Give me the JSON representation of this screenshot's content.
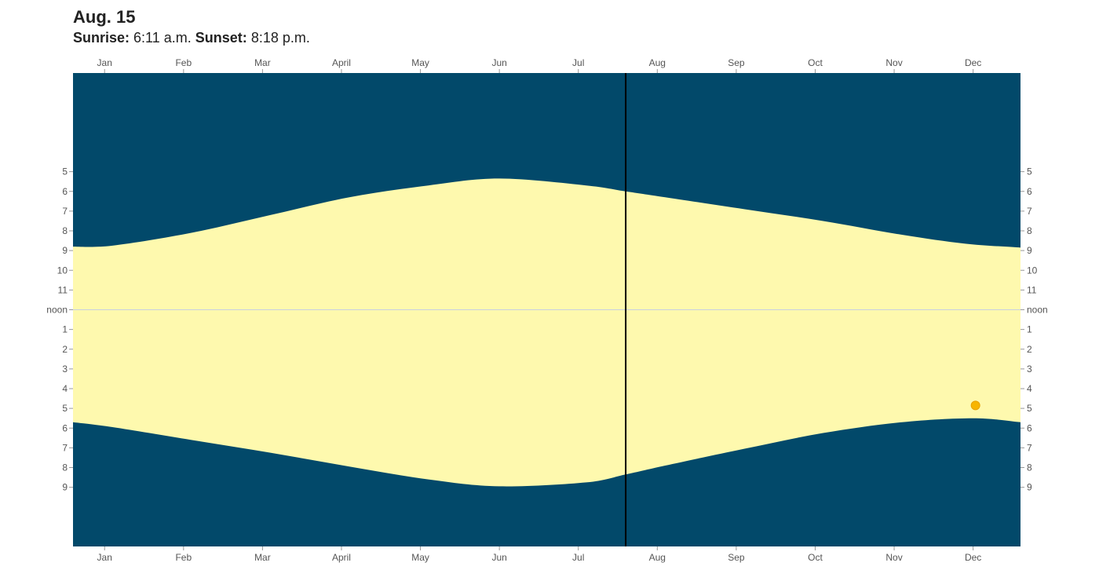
{
  "header": {
    "date": "Aug. 15",
    "sunrise_label": "Sunrise:",
    "sunrise_value": "6:11 a.m.",
    "sunset_label": "Sunset:",
    "sunset_value": "8:18 p.m."
  },
  "colors": {
    "night": "#02496a",
    "day": "#fef9ae",
    "noon_line": "#c8d0e0",
    "marker_line": "#000000",
    "sun_dot": "#f7b500"
  },
  "chart_data": {
    "type": "area",
    "months": [
      "Jan",
      "Feb",
      "Mar",
      "April",
      "May",
      "Jun",
      "Jul",
      "Aug",
      "Sep",
      "Oct",
      "Nov",
      "Dec"
    ],
    "hour_ticks": [
      "5",
      "6",
      "7",
      "8",
      "9",
      "10",
      "11",
      "noon",
      "1",
      "2",
      "3",
      "4",
      "5",
      "6",
      "7",
      "8",
      "9"
    ],
    "hour_tick_values": [
      5,
      6,
      7,
      8,
      9,
      10,
      11,
      12,
      13,
      14,
      15,
      16,
      17,
      18,
      19,
      20,
      21
    ],
    "ylim": [
      0,
      24
    ],
    "xlim": [
      0,
      12
    ],
    "upper_boundary": {
      "x": [
        0,
        0.5,
        1.5,
        2.5,
        3.5,
        4.5,
        5.4,
        6.5,
        7.0,
        7.5,
        8.5,
        9.5,
        10.5,
        11.3,
        12
      ],
      "y": [
        8.8,
        8.75,
        8.1,
        7.2,
        6.3,
        5.7,
        5.35,
        5.7,
        6.0,
        6.3,
        6.9,
        7.5,
        8.2,
        8.65,
        8.85
      ]
    },
    "lower_boundary": {
      "x": [
        0,
        0.5,
        1.5,
        2.5,
        3.5,
        4.5,
        5.4,
        6.5,
        7.0,
        7.5,
        8.5,
        9.5,
        10.5,
        11.4,
        12
      ],
      "y": [
        17.7,
        17.95,
        18.6,
        19.25,
        19.95,
        20.6,
        20.95,
        20.75,
        20.35,
        19.9,
        19.05,
        18.25,
        17.7,
        17.5,
        17.7
      ]
    },
    "current_date_x": 7.0,
    "sun_position": {
      "x": 11.43,
      "t": 16.85
    },
    "noon": 12
  }
}
